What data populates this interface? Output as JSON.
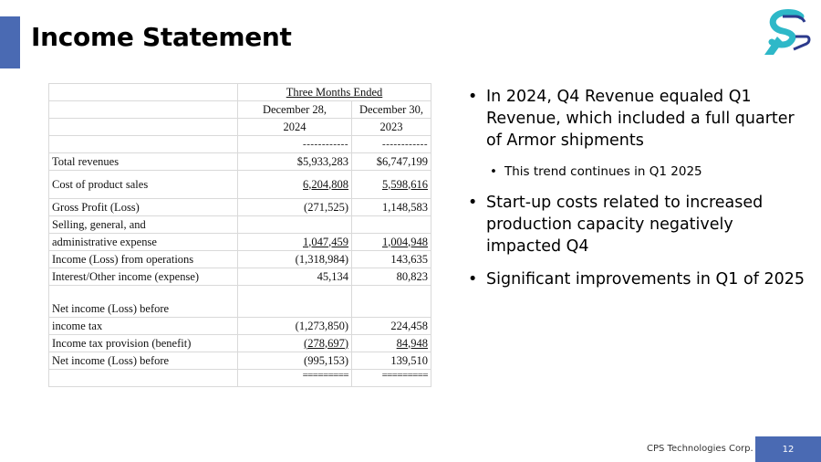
{
  "slide": {
    "title": "Income Statement",
    "logo_icon": "cps-logo-icon",
    "accent_color": "#4a6ab3",
    "footer": {
      "company": "CPS Technologies Corp.",
      "page_number": "12"
    }
  },
  "table": {
    "period_header": "Three Months Ended",
    "col1_date": "December 28,",
    "col1_year": "2024",
    "col2_date": "December 30,",
    "col2_year": "2023",
    "separator": "------------",
    "double_line": "=========",
    "rows": {
      "total_revenues": {
        "label": "Total revenues",
        "v2024": "$5,933,283",
        "v2023": "$6,747,199"
      },
      "cost_of_sales": {
        "label": "Cost of product sales",
        "v2024": "6,204,808",
        "v2023": "5,598,616"
      },
      "gross_profit": {
        "label": "Gross Profit (Loss)",
        "v2024": "(271,525)",
        "v2023": "1,148,583"
      },
      "sga_line1": {
        "label": "Selling, general, and"
      },
      "sga": {
        "label": "administrative expense",
        "v2024": "1,047,459",
        "v2023": "1,004,948"
      },
      "income_ops": {
        "label": "Income (Loss) from operations",
        "v2024": "(1,318,984)",
        "v2023": "143,635"
      },
      "interest_other": {
        "label": "Interest/Other income (expense)",
        "v2024": "45,134",
        "v2023": "80,823"
      },
      "net_before_line1": {
        "label": "Net income (Loss) before"
      },
      "income_tax": {
        "label": "income tax",
        "v2024": "(1,273,850)",
        "v2023": "224,458"
      },
      "tax_provision": {
        "label": "Income tax provision (benefit)",
        "v2024": "(278,697)",
        "v2023": "84,948"
      },
      "net_income": {
        "label": "Net income (Loss) before",
        "v2024": "(995,153)",
        "v2023": "139,510"
      }
    }
  },
  "bullets": {
    "b1": "In 2024, Q4 Revenue equaled Q1 Revenue, which included a full quarter of Armor shipments",
    "b1_sub": "This trend continues in Q1 2025",
    "b2": "Start-up costs related to increased production capacity negatively impacted Q4",
    "b3": "Significant improvements in Q1 of 2025"
  }
}
